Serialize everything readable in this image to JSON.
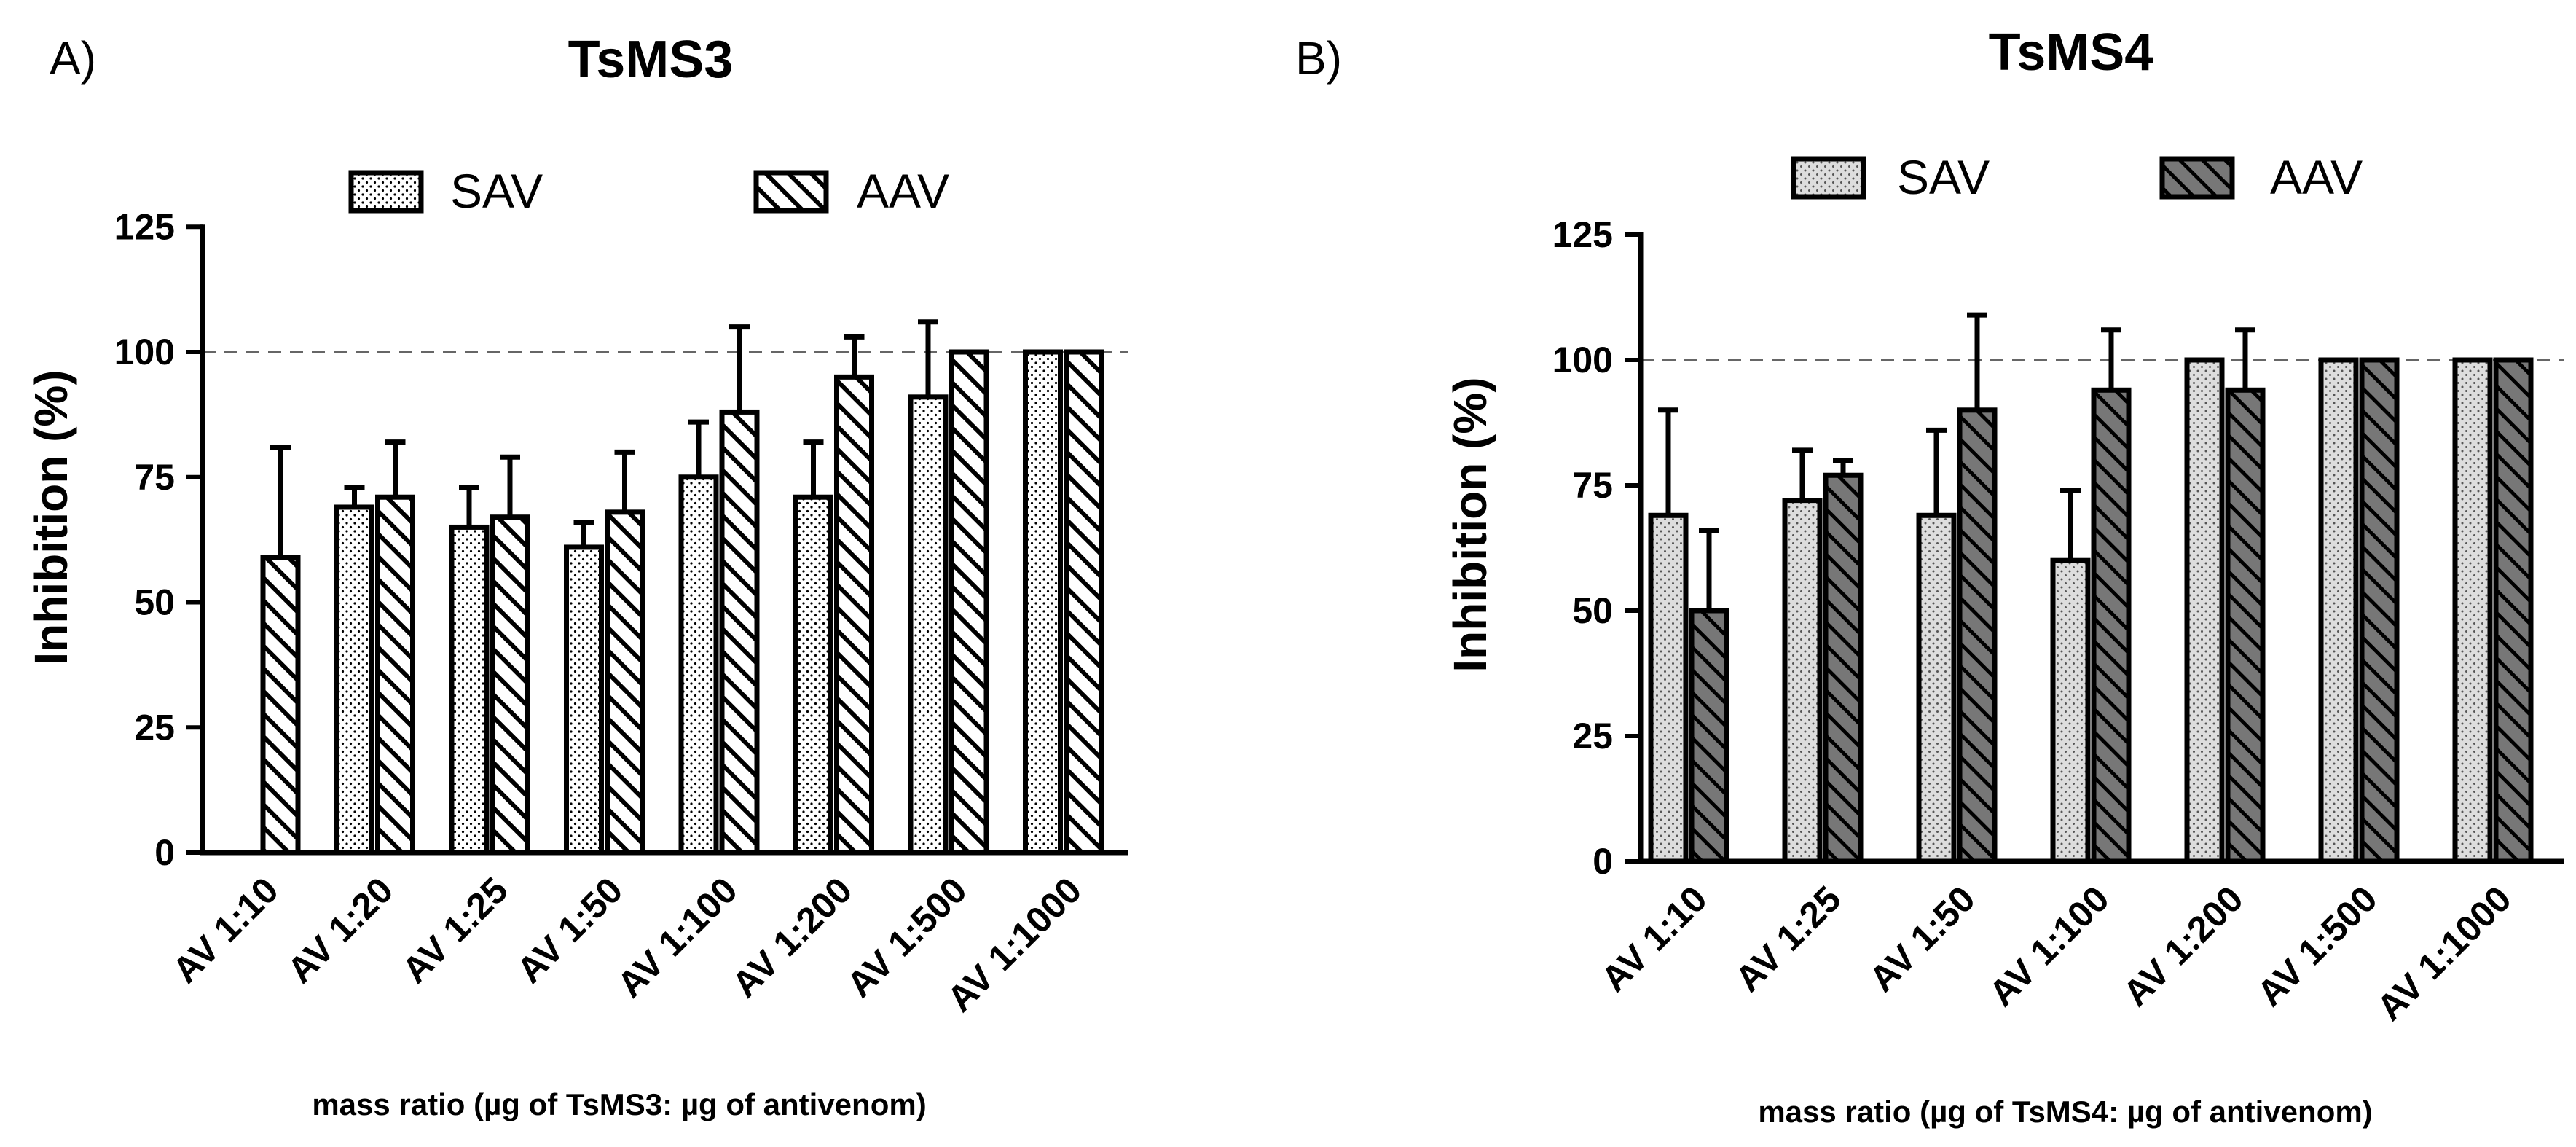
{
  "colors": {
    "axis": "#000000",
    "reference_line": "#666666",
    "sav_fill": "#dddddd",
    "aav_fill_light": "#ffffff",
    "aav_fill_dark": "#777777"
  },
  "chart_data": [
    {
      "panel_label": "A)",
      "type": "bar",
      "title": "TsMS3",
      "xlabel": "mass ratio (µg of TsMS3: µg of antivenom)",
      "ylabel": "Inhibition (%)",
      "ylim": [
        0,
        125
      ],
      "yticks": [
        "0",
        "25",
        "50",
        "75",
        "100",
        "125"
      ],
      "reference_line": 100,
      "legend_position": "top",
      "categories": [
        "AV 1:10",
        "AV 1:20",
        "AV 1:25",
        "AV 1:50",
        "AV 1:100",
        "AV 1:200",
        "AV 1:500",
        "AV 1:1000"
      ],
      "series": [
        {
          "name": "SAV",
          "pattern": "dots",
          "values": [
            null,
            69,
            65,
            61,
            75,
            71,
            91,
            100
          ],
          "errors": [
            null,
            4,
            8,
            5,
            11,
            11,
            15,
            0
          ]
        },
        {
          "name": "AAV",
          "pattern": "hatch-light",
          "values": [
            59,
            71,
            67,
            68,
            88,
            95,
            100,
            100
          ],
          "errors": [
            22,
            11,
            12,
            12,
            17,
            8,
            0,
            0
          ]
        }
      ]
    },
    {
      "panel_label": "B)",
      "type": "bar",
      "title": "TsMS4",
      "xlabel": "mass ratio (µg of TsMS4: µg of antivenom)",
      "ylabel": "Inhibition (%)",
      "ylim": [
        0,
        125
      ],
      "yticks": [
        "0",
        "25",
        "50",
        "75",
        "100",
        "125"
      ],
      "reference_line": 100,
      "legend_position": "top",
      "categories": [
        "AV 1:10",
        "AV 1:25",
        "AV 1:50",
        "AV 1:100",
        "AV 1:200",
        "AV 1:500",
        "AV 1:1000"
      ],
      "series": [
        {
          "name": "SAV",
          "pattern": "dots-gray",
          "values": [
            69,
            72,
            69,
            60,
            100,
            100,
            100
          ],
          "errors": [
            21,
            10,
            17,
            14,
            0,
            0,
            0
          ]
        },
        {
          "name": "AAV",
          "pattern": "hatch-dark",
          "values": [
            50,
            77,
            90,
            94,
            94,
            100,
            100
          ],
          "errors": [
            16,
            3,
            19,
            12,
            12,
            0,
            0
          ]
        }
      ]
    }
  ]
}
